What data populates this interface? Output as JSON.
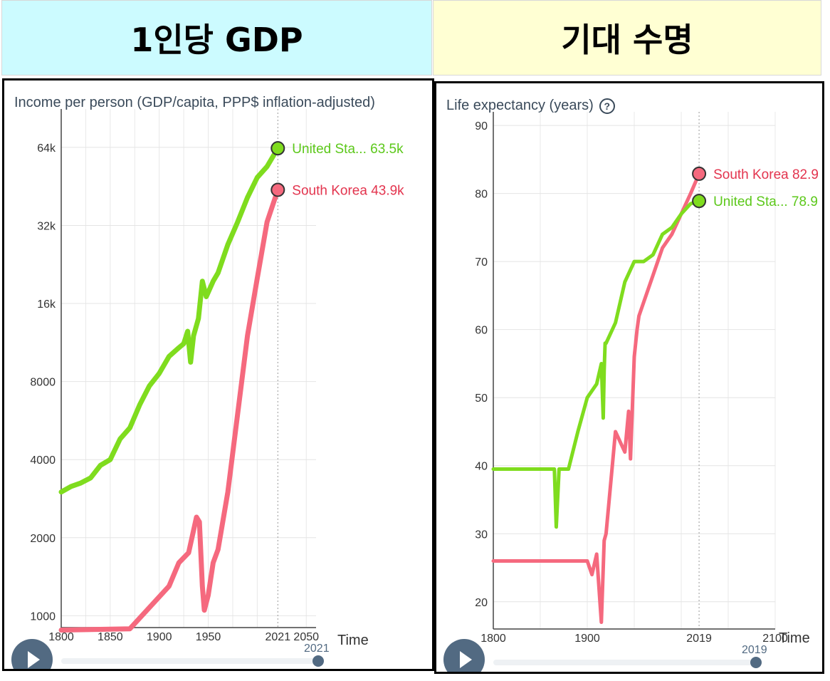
{
  "banners": {
    "left": "1인당 GDP",
    "right": "기대 수명"
  },
  "colors": {
    "us": "#7fdc1e",
    "korea": "#f5697e",
    "us_label": "#5cc81a",
    "korea_label": "#e3344e"
  },
  "time_label": "Time",
  "income_chart": {
    "title": "Income per person (GDP/capita, PPP$ inflation-adjusted)",
    "slider_year": "2021",
    "y_ticks": [
      "64k",
      "32k",
      "16k",
      "8000",
      "4000",
      "2000",
      "1000"
    ],
    "x_ticks": [
      "1800",
      "1850",
      "1900",
      "1950",
      "2021",
      "2050"
    ],
    "labels": {
      "us": "United Sta... 63.5k",
      "korea": "South Korea 43.9k"
    }
  },
  "life_chart": {
    "title": "Life expectancy (years)",
    "help_icon": "question-circle-icon",
    "slider_year": "2019",
    "y_ticks": [
      "90",
      "80",
      "70",
      "60",
      "50",
      "40",
      "30",
      "20"
    ],
    "x_ticks": [
      "1800",
      "1900",
      "2019",
      "2100"
    ],
    "labels": {
      "korea": "South Korea 82.9",
      "us": "United Sta... 78.9"
    }
  },
  "chart_data": [
    {
      "type": "line",
      "title": "Income per person (GDP/capita, PPP$ inflation-adjusted)",
      "xlabel": "Time",
      "ylabel": "",
      "yscale": "log",
      "xlim": [
        1800,
        2060
      ],
      "ylim": [
        900,
        90000
      ],
      "grid": true,
      "series": [
        {
          "name": "United Sta...",
          "color": "#7fdc1e",
          "x": [
            1800,
            1810,
            1820,
            1830,
            1840,
            1850,
            1860,
            1870,
            1880,
            1890,
            1900,
            1910,
            1920,
            1925,
            1929,
            1932,
            1935,
            1940,
            1944,
            1948,
            1955,
            1960,
            1970,
            1980,
            1990,
            2000,
            2010,
            2021
          ],
          "values": [
            3000,
            3150,
            3250,
            3400,
            3800,
            4000,
            4800,
            5300,
            6500,
            7700,
            8600,
            10000,
            10800,
            11200,
            12500,
            9500,
            12000,
            14000,
            19500,
            17000,
            19500,
            21000,
            27000,
            33000,
            41000,
            49000,
            54000,
            63500
          ]
        },
        {
          "name": "South Korea",
          "color": "#f5697e",
          "x": [
            1800,
            1870,
            1910,
            1920,
            1930,
            1938,
            1941,
            1944,
            1946,
            1950,
            1955,
            1960,
            1970,
            1980,
            1990,
            2000,
            2010,
            2021
          ],
          "values": [
            880,
            890,
            1300,
            1600,
            1750,
            2400,
            2300,
            1300,
            1050,
            1200,
            1600,
            1800,
            3000,
            6000,
            12000,
            20000,
            33000,
            43900
          ]
        }
      ]
    },
    {
      "type": "line",
      "title": "Life expectancy (years)",
      "xlabel": "Time",
      "ylabel": "",
      "xlim": [
        1800,
        2100
      ],
      "ylim": [
        16,
        92
      ],
      "grid": true,
      "series": [
        {
          "name": "South Korea",
          "color": "#f5697e",
          "x": [
            1800,
            1900,
            1905,
            1910,
            1915,
            1918,
            1920,
            1930,
            1940,
            1944,
            1946,
            1950,
            1953,
            1955,
            1960,
            1970,
            1980,
            1990,
            2000,
            2010,
            2019
          ],
          "values": [
            26,
            26,
            24,
            27,
            17,
            29,
            30,
            45,
            42,
            48,
            41,
            56,
            60,
            62,
            64,
            68,
            72,
            74,
            77,
            80,
            82.9
          ]
        },
        {
          "name": "United Sta...",
          "color": "#7fdc1e",
          "x": [
            1800,
            1865,
            1867,
            1870,
            1880,
            1890,
            1900,
            1910,
            1915,
            1917,
            1918,
            1919,
            1920,
            1930,
            1940,
            1950,
            1960,
            1970,
            1980,
            1990,
            2000,
            2010,
            2019
          ],
          "values": [
            39.5,
            39.5,
            31,
            39.5,
            39.5,
            45,
            50,
            52,
            55,
            47,
            54,
            58,
            58,
            61,
            67,
            70,
            70,
            71,
            74,
            75,
            77,
            78.5,
            78.9
          ]
        }
      ]
    }
  ]
}
